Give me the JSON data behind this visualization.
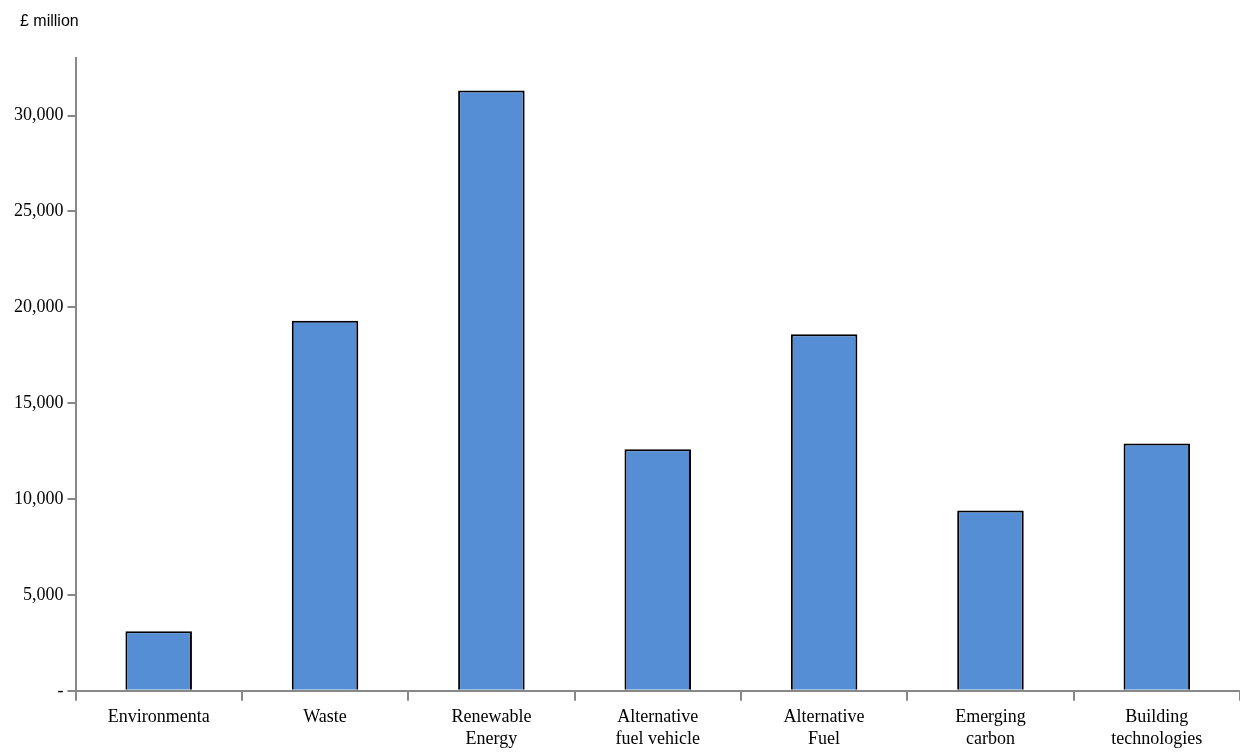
{
  "chart_data": {
    "type": "bar",
    "ylabel": "£ million",
    "categories": [
      "Environmenta",
      "Waste",
      "Renewable Energy",
      "Alternative fuel vehicle",
      "Alternative Fuel",
      "Emerging carbon",
      "Building technologies"
    ],
    "values": [
      3100,
      19300,
      31300,
      12600,
      18600,
      9400,
      12900
    ],
    "color": "#558ed5",
    "ylim": [
      0,
      33000
    ],
    "yticks": [
      {
        "value": 0,
        "label": "-"
      },
      {
        "value": 5000,
        "label": "5,000"
      },
      {
        "value": 10000,
        "label": "10,000"
      },
      {
        "value": 15000,
        "label": "15,000"
      },
      {
        "value": 20000,
        "label": "20,000"
      },
      {
        "value": 25000,
        "label": "25,000"
      },
      {
        "value": 30000,
        "label": "30,000"
      }
    ],
    "grid": false,
    "legend": false
  }
}
